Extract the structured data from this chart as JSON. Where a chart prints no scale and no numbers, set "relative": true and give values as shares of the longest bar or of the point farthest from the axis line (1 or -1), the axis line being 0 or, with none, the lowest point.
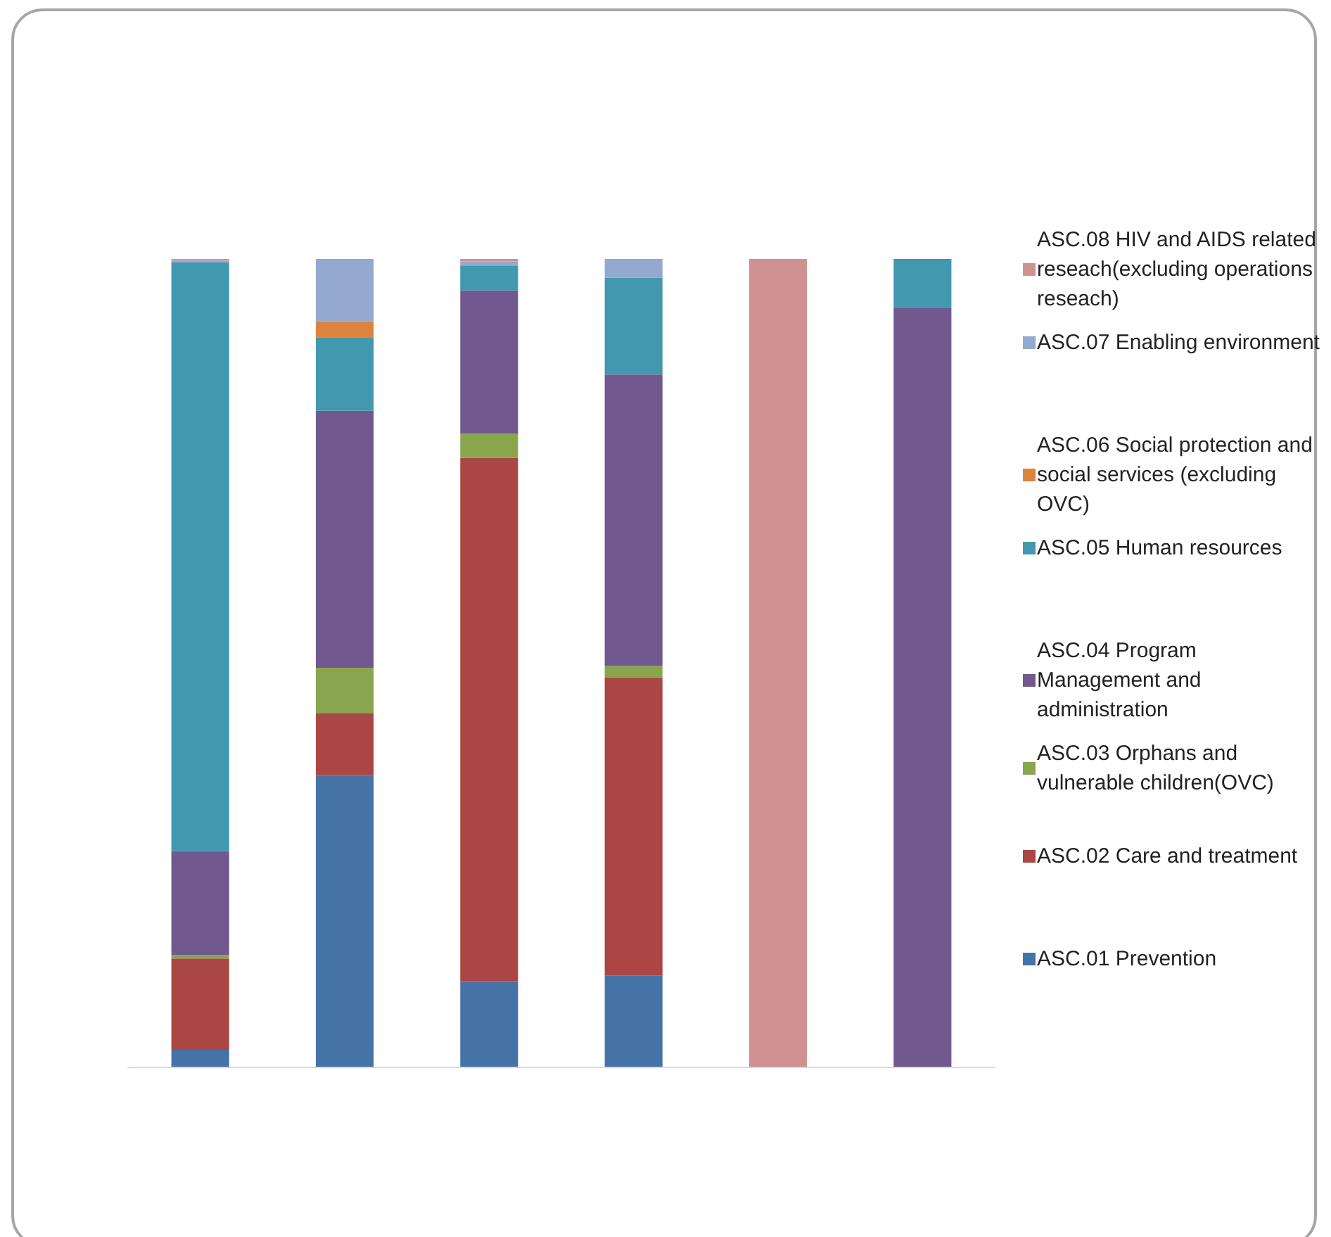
{
  "chart_data": {
    "type": "bar",
    "stacked": true,
    "relative": true,
    "legend": "right",
    "categories": [
      null,
      null,
      null,
      null,
      null,
      null
    ],
    "series": [
      {
        "name": "ASC.01 Prevention",
        "color": "#4572a7",
        "values": [
          0.021,
          0.361,
          0.106,
          0.113,
          0,
          0
        ]
      },
      {
        "name": "ASC.02 Care and treatment",
        "color": "#aa4643",
        "values": [
          0.113,
          0.077,
          0.648,
          0.369,
          0,
          0
        ]
      },
      {
        "name": "ASC.03 Orphans and vulnerable children(OVC)",
        "color": "#89a54e",
        "values": [
          0.004,
          0.056,
          0.03,
          0.014,
          0,
          0
        ]
      },
      {
        "name": "ASC.04 Program Management and administration",
        "color": "#71588f",
        "values": [
          0.129,
          0.318,
          0.177,
          0.361,
          0,
          0.939
        ]
      },
      {
        "name": "ASC.05 Human resources",
        "color": "#4198af",
        "values": [
          0.729,
          0.091,
          0.031,
          0.12,
          0,
          0.061
        ]
      },
      {
        "name": "ASC.06 Social protection and social services (excluding OVC)",
        "color": "#db843d",
        "values": [
          0,
          0.02,
          0,
          0,
          0,
          0
        ]
      },
      {
        "name": "ASC.07 Enabling environment",
        "color": "#93a9cf",
        "values": [
          0.002,
          0.077,
          0.005,
          0.023,
          0,
          0
        ]
      },
      {
        "name": "ASC.08 HIV and AIDS related reseach(excluding operations reseach)",
        "color": "#d09290",
        "values": [
          0.002,
          0,
          0.003,
          0,
          1,
          0
        ]
      }
    ]
  }
}
